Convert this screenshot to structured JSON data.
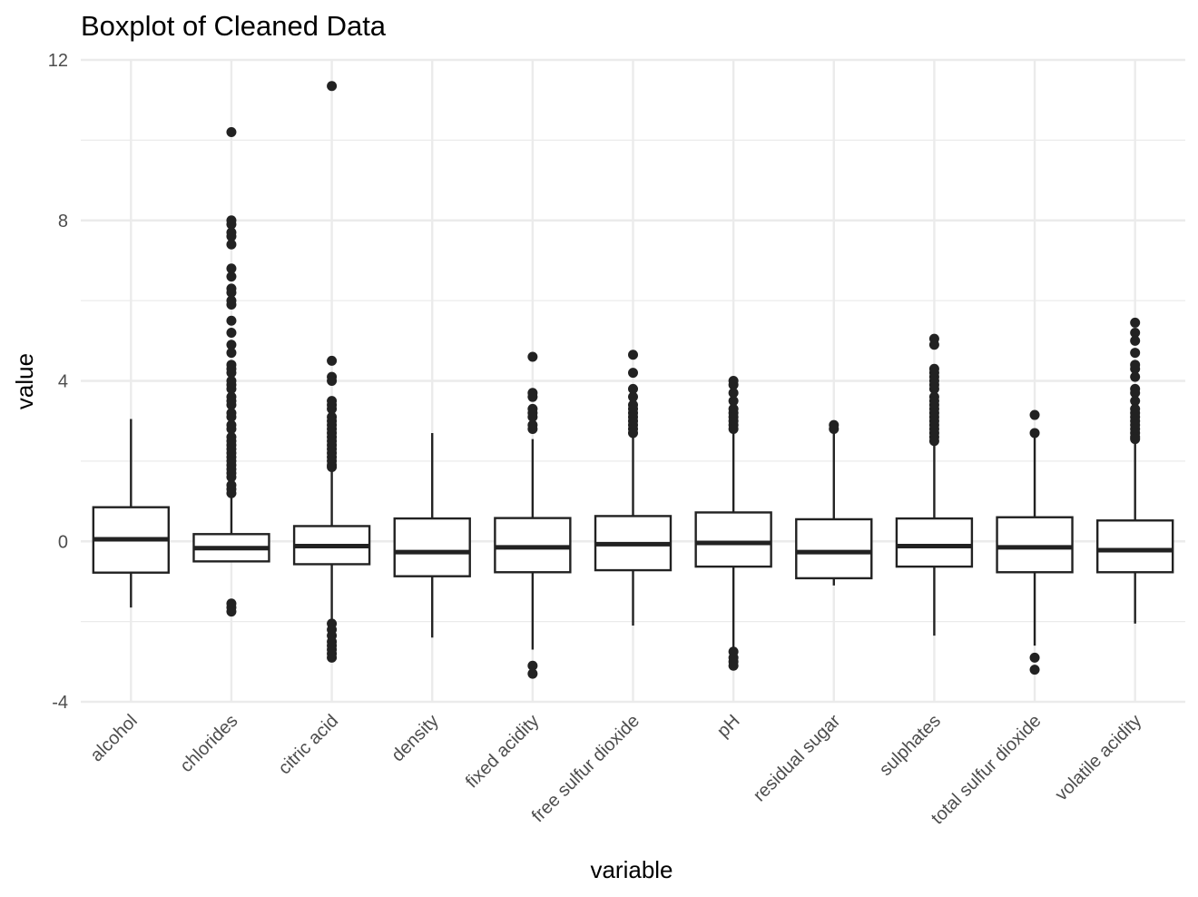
{
  "chart_data": {
    "type": "boxplot",
    "title": "Boxplot of Cleaned Data",
    "xlabel": "variable",
    "ylabel": "value",
    "ylim": [
      -4,
      12
    ],
    "yticks": [
      -4,
      0,
      4,
      8,
      12
    ],
    "ytick_labels": [
      "-4",
      "0",
      "4",
      "8",
      "12"
    ],
    "grid": true,
    "colors": {
      "box_stroke": "#222222",
      "grid": "#ebebeb",
      "text": "#4d4d4d"
    },
    "categories": [
      "alcohol",
      "chlorides",
      "citric acid",
      "density",
      "fixed acidity",
      "free sulfur dioxide",
      "pH",
      "residual sugar",
      "sulphates",
      "total sulfur dioxide",
      "volatile acidity"
    ],
    "boxes": [
      {
        "category": "alcohol",
        "whisker_low": -1.65,
        "q1": -0.78,
        "median": 0.05,
        "q3": 0.85,
        "whisker_high": 3.05,
        "outliers": []
      },
      {
        "category": "chlorides",
        "whisker_low": -0.5,
        "q1": -0.5,
        "median": -0.17,
        "q3": 0.18,
        "whisker_high": 1.2,
        "outliers": [
          10.2,
          8.0,
          7.9,
          7.7,
          7.6,
          7.4,
          6.8,
          6.6,
          6.3,
          6.2,
          6.0,
          5.9,
          5.5,
          5.2,
          4.9,
          4.7,
          4.4,
          4.3,
          4.2,
          4.0,
          3.9,
          3.8,
          3.6,
          3.5,
          3.4,
          3.2,
          3.1,
          2.9,
          2.8,
          2.6,
          2.5,
          2.4,
          2.3,
          2.2,
          2.1,
          2.0,
          1.9,
          1.8,
          1.7,
          1.6,
          1.4,
          1.3,
          1.2,
          -1.55,
          -1.65,
          -1.75
        ]
      },
      {
        "category": "citric acid",
        "whisker_low": -1.95,
        "q1": -0.57,
        "median": -0.12,
        "q3": 0.38,
        "whisker_high": 1.75,
        "outliers": [
          11.35,
          4.5,
          4.1,
          4.0,
          3.5,
          3.4,
          3.3,
          3.1,
          3.0,
          2.9,
          2.8,
          2.7,
          2.6,
          2.5,
          2.4,
          2.3,
          2.2,
          2.1,
          2.0,
          1.9,
          1.85,
          -2.05,
          -2.2,
          -2.35,
          -2.5,
          -2.6,
          -2.7,
          -2.8,
          -2.9
        ]
      },
      {
        "category": "density",
        "whisker_low": -2.4,
        "q1": -0.87,
        "median": -0.27,
        "q3": 0.57,
        "whisker_high": 2.7,
        "outliers": []
      },
      {
        "category": "fixed acidity",
        "whisker_low": -2.7,
        "q1": -0.77,
        "median": -0.15,
        "q3": 0.58,
        "whisker_high": 2.55,
        "outliers": [
          4.6,
          3.7,
          3.6,
          3.3,
          3.2,
          3.1,
          2.9,
          2.8,
          -3.1,
          -3.3
        ]
      },
      {
        "category": "free sulfur dioxide",
        "whisker_low": -2.1,
        "q1": -0.72,
        "median": -0.07,
        "q3": 0.63,
        "whisker_high": 2.6,
        "outliers": [
          4.65,
          4.2,
          3.8,
          3.6,
          3.4,
          3.3,
          3.2,
          3.1,
          3.0,
          2.9,
          2.8,
          2.7
        ]
      },
      {
        "category": "pH",
        "whisker_low": -2.7,
        "q1": -0.63,
        "median": -0.04,
        "q3": 0.72,
        "whisker_high": 2.75,
        "outliers": [
          4.0,
          3.9,
          3.7,
          3.5,
          3.3,
          3.2,
          3.1,
          3.0,
          2.9,
          2.8,
          -2.75,
          -2.9,
          -3.0,
          -3.1
        ]
      },
      {
        "category": "residual sugar",
        "whisker_low": -1.1,
        "q1": -0.92,
        "median": -0.27,
        "q3": 0.55,
        "whisker_high": 2.7,
        "outliers": [
          2.9,
          2.8
        ]
      },
      {
        "category": "sulphates",
        "whisker_low": -2.35,
        "q1": -0.63,
        "median": -0.12,
        "q3": 0.57,
        "whisker_high": 2.45,
        "outliers": [
          5.05,
          4.9,
          4.3,
          4.2,
          4.1,
          4.0,
          3.9,
          3.8,
          3.6,
          3.5,
          3.4,
          3.3,
          3.2,
          3.1,
          3.0,
          2.9,
          2.8,
          2.7,
          2.6,
          2.5
        ]
      },
      {
        "category": "total sulfur dioxide",
        "whisker_low": -2.6,
        "q1": -0.77,
        "median": -0.15,
        "q3": 0.6,
        "whisker_high": 2.6,
        "outliers": [
          3.15,
          2.7,
          -2.9,
          -3.2
        ]
      },
      {
        "category": "volatile acidity",
        "whisker_low": -2.05,
        "q1": -0.77,
        "median": -0.22,
        "q3": 0.52,
        "whisker_high": 2.45,
        "outliers": [
          5.45,
          5.2,
          5.0,
          4.7,
          4.4,
          4.3,
          4.1,
          3.8,
          3.7,
          3.5,
          3.3,
          3.2,
          3.1,
          3.0,
          2.9,
          2.8,
          2.7,
          2.6,
          2.55
        ]
      }
    ]
  }
}
